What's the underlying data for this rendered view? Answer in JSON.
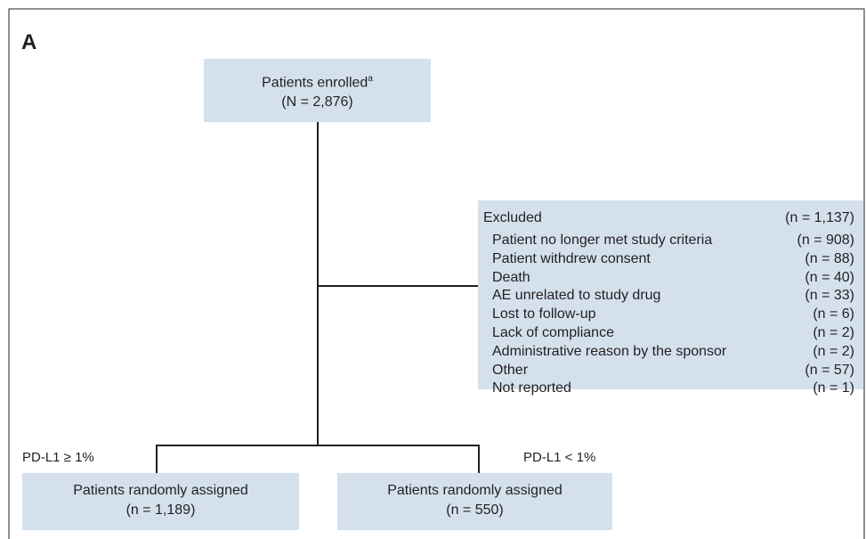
{
  "panel_label": "A",
  "enrolled": {
    "label": "Patients enrolled",
    "superscript": "a",
    "count": "(N = 2,876)"
  },
  "excluded": {
    "label": "Excluded",
    "count": "(n = 1,137)",
    "items": [
      {
        "label": "Patient no longer met study criteria",
        "count": "(n = 908)"
      },
      {
        "label": "Patient withdrew consent",
        "count": "(n = 88)"
      },
      {
        "label": "Death",
        "count": "(n = 40)"
      },
      {
        "label": "AE unrelated to study drug",
        "count": "(n = 33)"
      },
      {
        "label": "Lost to follow-up",
        "count": "(n = 6)"
      },
      {
        "label": "Lack of compliance",
        "count": "(n = 2)"
      },
      {
        "label": "Administrative reason by the sponsor",
        "count": "(n = 2)"
      },
      {
        "label": "Other",
        "count": "(n = 57)"
      },
      {
        "label": "Not reported",
        "count": "(n = 1)"
      }
    ]
  },
  "branches": [
    {
      "label": "PD-L1 ≥ 1%",
      "box_label": "Patients randomly assigned",
      "count": "(n = 1,189)"
    },
    {
      "label": "PD-L1 < 1%",
      "box_label": "Patients randomly assigned",
      "count": "(n = 550)"
    }
  ]
}
